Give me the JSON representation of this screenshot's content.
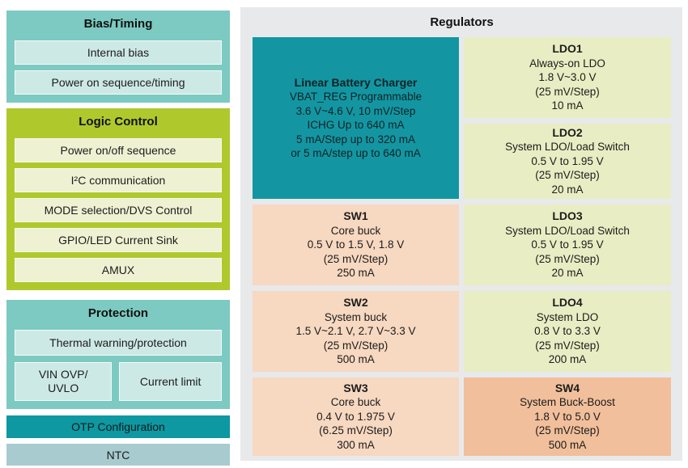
{
  "colors": {
    "teal_block": "#7CCAC1",
    "teal_item": "#CDE9E5",
    "lime_block": "#AFC92D",
    "lime_item": "#EFF2D2",
    "otp_teal": "#0E98A1",
    "ntc": "#A7CBCF",
    "charger_teal": "#1396A2",
    "ldo": "#E9EDC3",
    "sw": "#F7D8C0",
    "sw4": "#F1BF9B",
    "panel_bg": "#E8E9EA"
  },
  "left_column": {
    "bias_timing": {
      "title": "Bias/Timing",
      "items": [
        "Internal bias",
        "Power on sequence/timing"
      ]
    },
    "logic_control": {
      "title": "Logic Control",
      "items": [
        "Power on/off sequence",
        "I²C communication",
        "MODE selection/DVS Control",
        "GPIO/LED Current Sink",
        "AMUX"
      ]
    },
    "protection": {
      "title": "Protection",
      "thermal": "Thermal warning/protection",
      "vin": "VIN OVP/\nUVLO",
      "current_limit": "Current limit"
    },
    "otp": "OTP Configuration",
    "ntc": "NTC"
  },
  "regulators": {
    "title": "Regulators",
    "charger": {
      "title": "Linear Battery Charger",
      "lines": [
        "VBAT_REG Programmable",
        "3.6 V~4.6 V, 10 mV/Step",
        "ICHG Up to 640 mA",
        "5 mA/Step up to 320 mA",
        "or 5 mA/step up to 640 mA"
      ]
    },
    "sw1": {
      "title": "SW1",
      "lines": [
        "Core buck",
        "0.5 V to 1.5 V, 1.8 V",
        "(25 mV/Step)",
        "250 mA"
      ]
    },
    "sw2": {
      "title": "SW2",
      "lines": [
        "System buck",
        "1.5 V~2.1 V, 2.7 V~3.3 V",
        "(25 mV/Step)",
        "500 mA"
      ]
    },
    "sw3": {
      "title": "SW3",
      "lines": [
        "Core buck",
        "0.4 V to 1.975 V",
        "(6.25 mV/Step)",
        "300 mA"
      ]
    },
    "ldo1": {
      "title": "LDO1",
      "lines": [
        "Always-on LDO",
        "1.8 V~3.0 V",
        "(25 mV/Step)",
        "10 mA"
      ]
    },
    "ldo2": {
      "title": "LDO2",
      "lines": [
        "System LDO/Load Switch",
        "0.5 V to 1.95 V",
        "(25 mV/Step)",
        "20 mA"
      ]
    },
    "ldo3": {
      "title": "LDO3",
      "lines": [
        "System LDO/Load Switch",
        "0.5 V to 1.95 V",
        "(25 mV/Step)",
        "20 mA"
      ]
    },
    "ldo4": {
      "title": "LDO4",
      "lines": [
        "System LDO",
        "0.8 V to 3.3 V",
        "(25 mV/Step)",
        "200 mA"
      ]
    },
    "sw4": {
      "title": "SW4",
      "lines": [
        "System Buck-Boost",
        "1.8 V to 5.0 V",
        "(25 mV/Step)",
        "500 mA"
      ]
    }
  }
}
